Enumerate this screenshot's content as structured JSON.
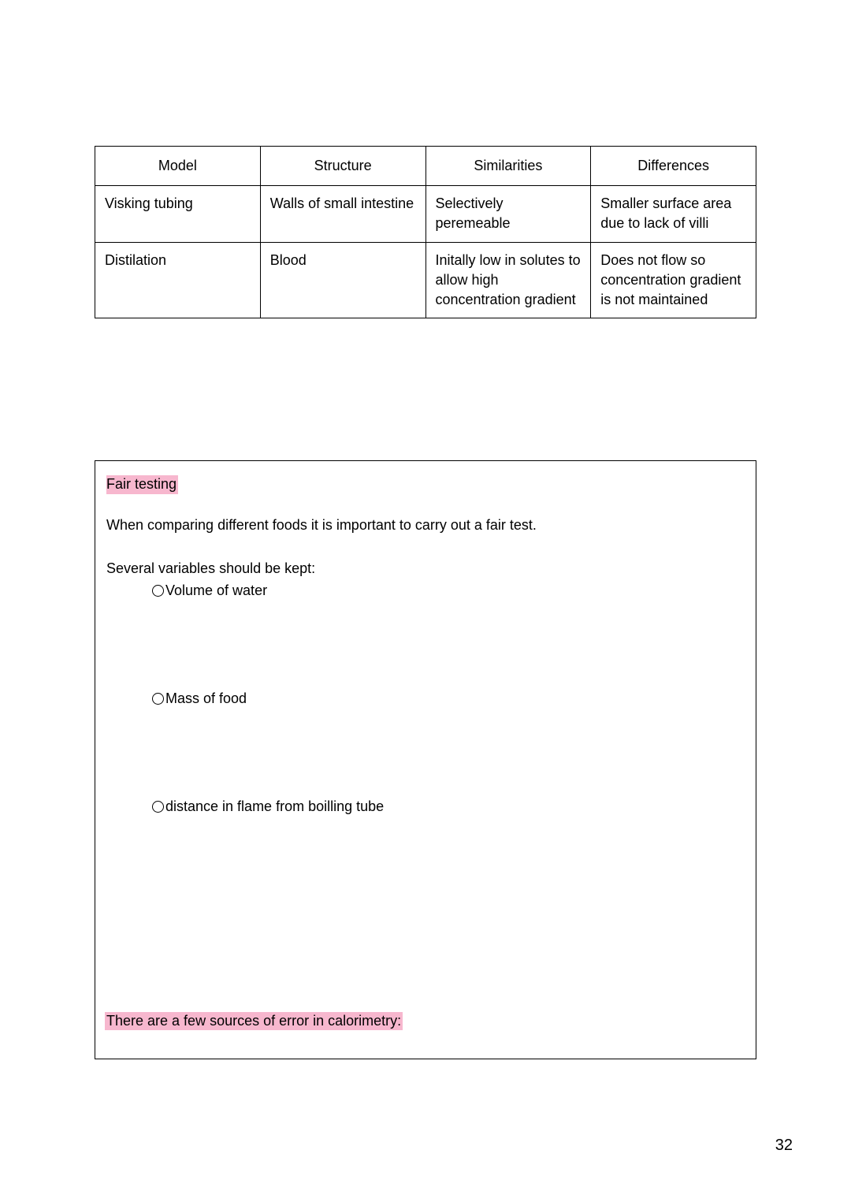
{
  "colors": {
    "highlight_pink": "#f7b7ce",
    "text": "#000000",
    "background": "#ffffff",
    "border": "#000000"
  },
  "table": {
    "headers": [
      "Model",
      "Structure",
      "Similarities",
      "Differences"
    ],
    "rows": [
      {
        "model": "Visking tubing",
        "structure": "Walls of small intestine",
        "similarities": "Selectively peremeable",
        "differences": "Smaller surface area due to lack of villi"
      },
      {
        "model": "Distilation",
        "structure": "Blood",
        "similarities": "Initally low in solutes to allow high concentration gradient",
        "differences": "Does not flow so concentration gradient is not maintained"
      }
    ]
  },
  "section": {
    "heading": "Fair testing",
    "intro": "When comparing different foods it is important to carry out a fair test.",
    "variables_label": "Several variables should be kept:",
    "variables": [
      "Volume of water",
      "Mass of food",
      "distance in flame from boilling tube"
    ],
    "error_line": "There are a few sources of error in calorimetry:"
  },
  "page_number": "32",
  "typography": {
    "title_fontsize": 18,
    "body_fontsize": 18
  }
}
